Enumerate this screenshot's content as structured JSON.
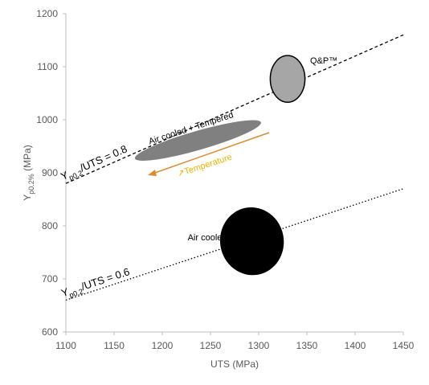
{
  "chart_data": {
    "type": "scatter",
    "xlabel": "UTS (MPa)",
    "ylabel": {
      "main": "Y",
      "sub": "p0.2%",
      "rest": " (MPa)"
    },
    "xlim": [
      1100,
      1450
    ],
    "xticks": [
      1100,
      1150,
      1200,
      1250,
      1300,
      1350,
      1400,
      1450
    ],
    "ylim": [
      600,
      1200
    ],
    "yticks": [
      600,
      700,
      800,
      900,
      1000,
      1100,
      1200
    ],
    "ratio_lines": [
      {
        "label": {
          "main": "Y",
          "sub": "p0.2",
          "rest": "/UTS = 0.8"
        },
        "x": [
          1100,
          1450
        ],
        "values": [
          880,
          1160
        ],
        "dash": "dashed",
        "color": "#000000"
      },
      {
        "label": {
          "main": "Y",
          "sub": "p0.2",
          "rest": "/UTS = 0.6"
        },
        "x": [
          1100,
          1450
        ],
        "values": [
          660,
          870
        ],
        "dash": "dotted",
        "color": "#000000"
      }
    ],
    "series": [
      {
        "name": "Air cooled + Tempered",
        "color": "#808080",
        "cx": 1237,
        "cy": 961,
        "rx": 68,
        "ry": 18,
        "rotate": -16
      },
      {
        "name": "Air cooled",
        "color": "#000000",
        "cx": 1293,
        "cy": 771,
        "rx": 33,
        "ry": 64,
        "rotate": -10
      },
      {
        "name": "Q&P™",
        "color": "#a6a6a6",
        "cx": 1330,
        "cy": 1077,
        "rx": 18,
        "ry": 44,
        "rotate": 0
      }
    ],
    "annotation": "↗Temperature"
  }
}
